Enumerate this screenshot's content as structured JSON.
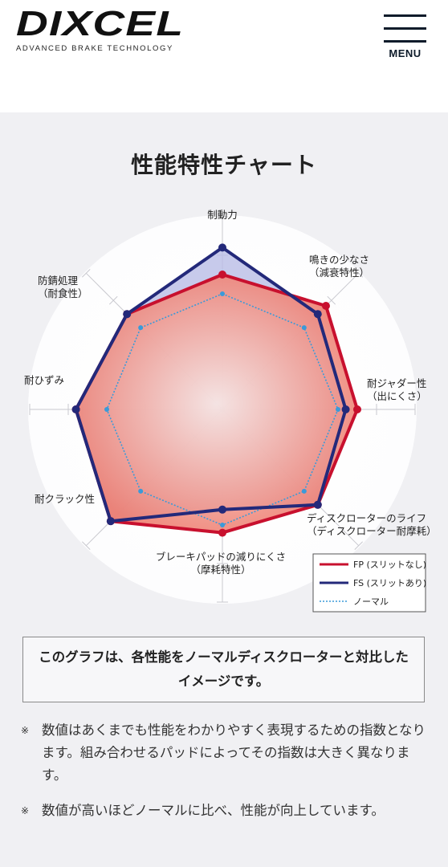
{
  "header": {
    "logo": "DIXCEL",
    "tagline": "ADVANCED BRAKE TECHNOLOGY",
    "menu": "MENU"
  },
  "chart_data": {
    "type": "radar",
    "title": "性能特性チャート",
    "categories": [
      "制動力",
      "鳴きの少なさ（減衰特性）",
      "耐ジャダー性（出にくさ）",
      "ディスクローターのライフ（ディスクローター耐摩耗）",
      "ブレーキパッドの減りにくさ（摩耗特性）",
      "耐クラック性",
      "耐ひずみ",
      "防錆処理（耐食性）"
    ],
    "series": [
      {
        "name": "FP (スリットなし)",
        "color": "#c8102e",
        "values": [
          3.5,
          3.8,
          3.5,
          3.5,
          3.2,
          4.1,
          3.8,
          3.5
        ]
      },
      {
        "name": "FS (スリットあり)",
        "color": "#23297a",
        "values": [
          4.2,
          3.5,
          3.2,
          3.5,
          2.6,
          4.1,
          3.8,
          3.5
        ]
      },
      {
        "name": "ノーマル",
        "color": "#3a9ad9",
        "values": [
          3,
          3,
          3,
          3,
          3,
          3,
          3,
          3
        ]
      }
    ],
    "rlim": [
      0,
      5
    ],
    "rticks": [
      1,
      2,
      3,
      4,
      5
    ],
    "grid": true,
    "legend": "lower-right"
  },
  "note": "このグラフは、各性能をノーマルディスクローターと対比したイメージです。",
  "notes": [
    {
      "mark": "※",
      "text": "数値はあくまでも性能をわかりやすく表現するための指数となります。組み合わせるパッドによってその指数は大きく異なります。"
    },
    {
      "mark": "※",
      "text": "数値が高いほどノーマルに比べ、性能が向上しています。"
    }
  ]
}
